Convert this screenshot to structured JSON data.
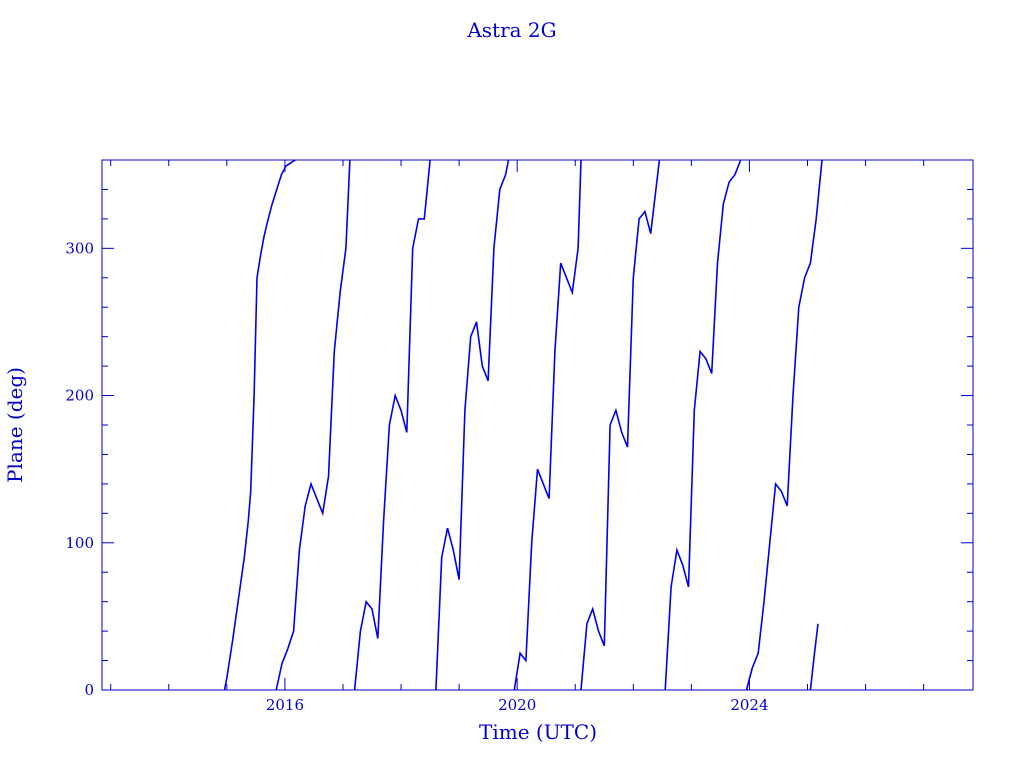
{
  "chart_data": {
    "type": "line",
    "title": "Astra 2G",
    "xlabel": "Time (UTC)",
    "ylabel": "Plane (deg)",
    "xlim": [
      2012.85,
      2027.85
    ],
    "ylim": [
      0,
      360
    ],
    "xticks": [
      2016,
      2020,
      2024
    ],
    "xtick_labels": [
      "2016",
      "2020",
      "2024"
    ],
    "yticks": [
      0,
      100,
      200,
      300
    ],
    "ytick_labels": [
      "0",
      "100",
      "200",
      "300"
    ],
    "grid": false,
    "legend": "none",
    "color": "#0000ee",
    "series": [
      {
        "x": [
          2014.96,
          2015.0,
          2015.1,
          2015.2,
          2015.3,
          2015.37,
          2015.41,
          2015.47,
          2015.52,
          2015.58,
          2015.64,
          2015.7,
          2015.78,
          2015.86,
          2015.94,
          2016.02,
          2016.1,
          2016.18
        ],
        "y": [
          0,
          8,
          34,
          62,
          90,
          115,
          135,
          200,
          280,
          295,
          308,
          318,
          330,
          340,
          350,
          356,
          358,
          360
        ]
      },
      {
        "x": [
          2015.85,
          2015.95,
          2016.05,
          2016.15,
          2016.25,
          2016.35,
          2016.45,
          2016.55,
          2016.65,
          2016.75,
          2016.85,
          2016.95,
          2017.05,
          2017.12
        ],
        "y": [
          0,
          18,
          28,
          40,
          95,
          125,
          140,
          130,
          120,
          145,
          230,
          270,
          300,
          360
        ]
      },
      {
        "x": [
          2017.2,
          2017.3,
          2017.4,
          2017.5,
          2017.6,
          2017.7,
          2017.8,
          2017.9,
          2018.0,
          2018.1,
          2018.2,
          2018.3,
          2018.4,
          2018.5
        ],
        "y": [
          0,
          40,
          60,
          55,
          35,
          115,
          180,
          200,
          190,
          175,
          300,
          320,
          320,
          360
        ]
      },
      {
        "x": [
          2018.6,
          2018.7,
          2018.8,
          2018.9,
          2019.0,
          2019.1,
          2019.2,
          2019.3,
          2019.4,
          2019.5,
          2019.6,
          2019.7,
          2019.8,
          2019.85
        ],
        "y": [
          0,
          90,
          110,
          95,
          75,
          190,
          240,
          250,
          220,
          210,
          300,
          340,
          350,
          360
        ]
      },
      {
        "x": [
          2019.95,
          2020.05,
          2020.15,
          2020.25,
          2020.35,
          2020.45,
          2020.55,
          2020.65,
          2020.75,
          2020.85,
          2020.95,
          2021.05,
          2021.1
        ],
        "y": [
          0,
          25,
          20,
          100,
          150,
          140,
          130,
          230,
          290,
          280,
          270,
          300,
          360
        ]
      },
      {
        "x": [
          2021.1,
          2021.2,
          2021.3,
          2021.4,
          2021.5,
          2021.6,
          2021.7,
          2021.8,
          2021.9,
          2022.0,
          2022.1,
          2022.2,
          2022.3,
          2022.45
        ],
        "y": [
          0,
          45,
          55,
          40,
          30,
          180,
          190,
          175,
          165,
          280,
          320,
          325,
          310,
          360
        ]
      },
      {
        "x": [
          2022.55,
          2022.65,
          2022.75,
          2022.85,
          2022.95,
          2023.05,
          2023.15,
          2023.25,
          2023.35,
          2023.45,
          2023.55,
          2023.65,
          2023.75,
          2023.85
        ],
        "y": [
          0,
          70,
          95,
          85,
          70,
          190,
          230,
          225,
          215,
          290,
          330,
          345,
          350,
          360
        ]
      },
      {
        "x": [
          2023.95,
          2024.05,
          2024.15,
          2024.25,
          2024.35,
          2024.45,
          2024.55,
          2024.65,
          2024.75,
          2024.85,
          2024.95,
          2025.05,
          2025.15,
          2025.25
        ],
        "y": [
          0,
          15,
          25,
          60,
          100,
          140,
          135,
          125,
          200,
          260,
          280,
          290,
          320,
          360
        ]
      },
      {
        "x": [
          2025.05,
          2025.12,
          2025.18
        ],
        "y": [
          0,
          25,
          45
        ]
      }
    ]
  }
}
